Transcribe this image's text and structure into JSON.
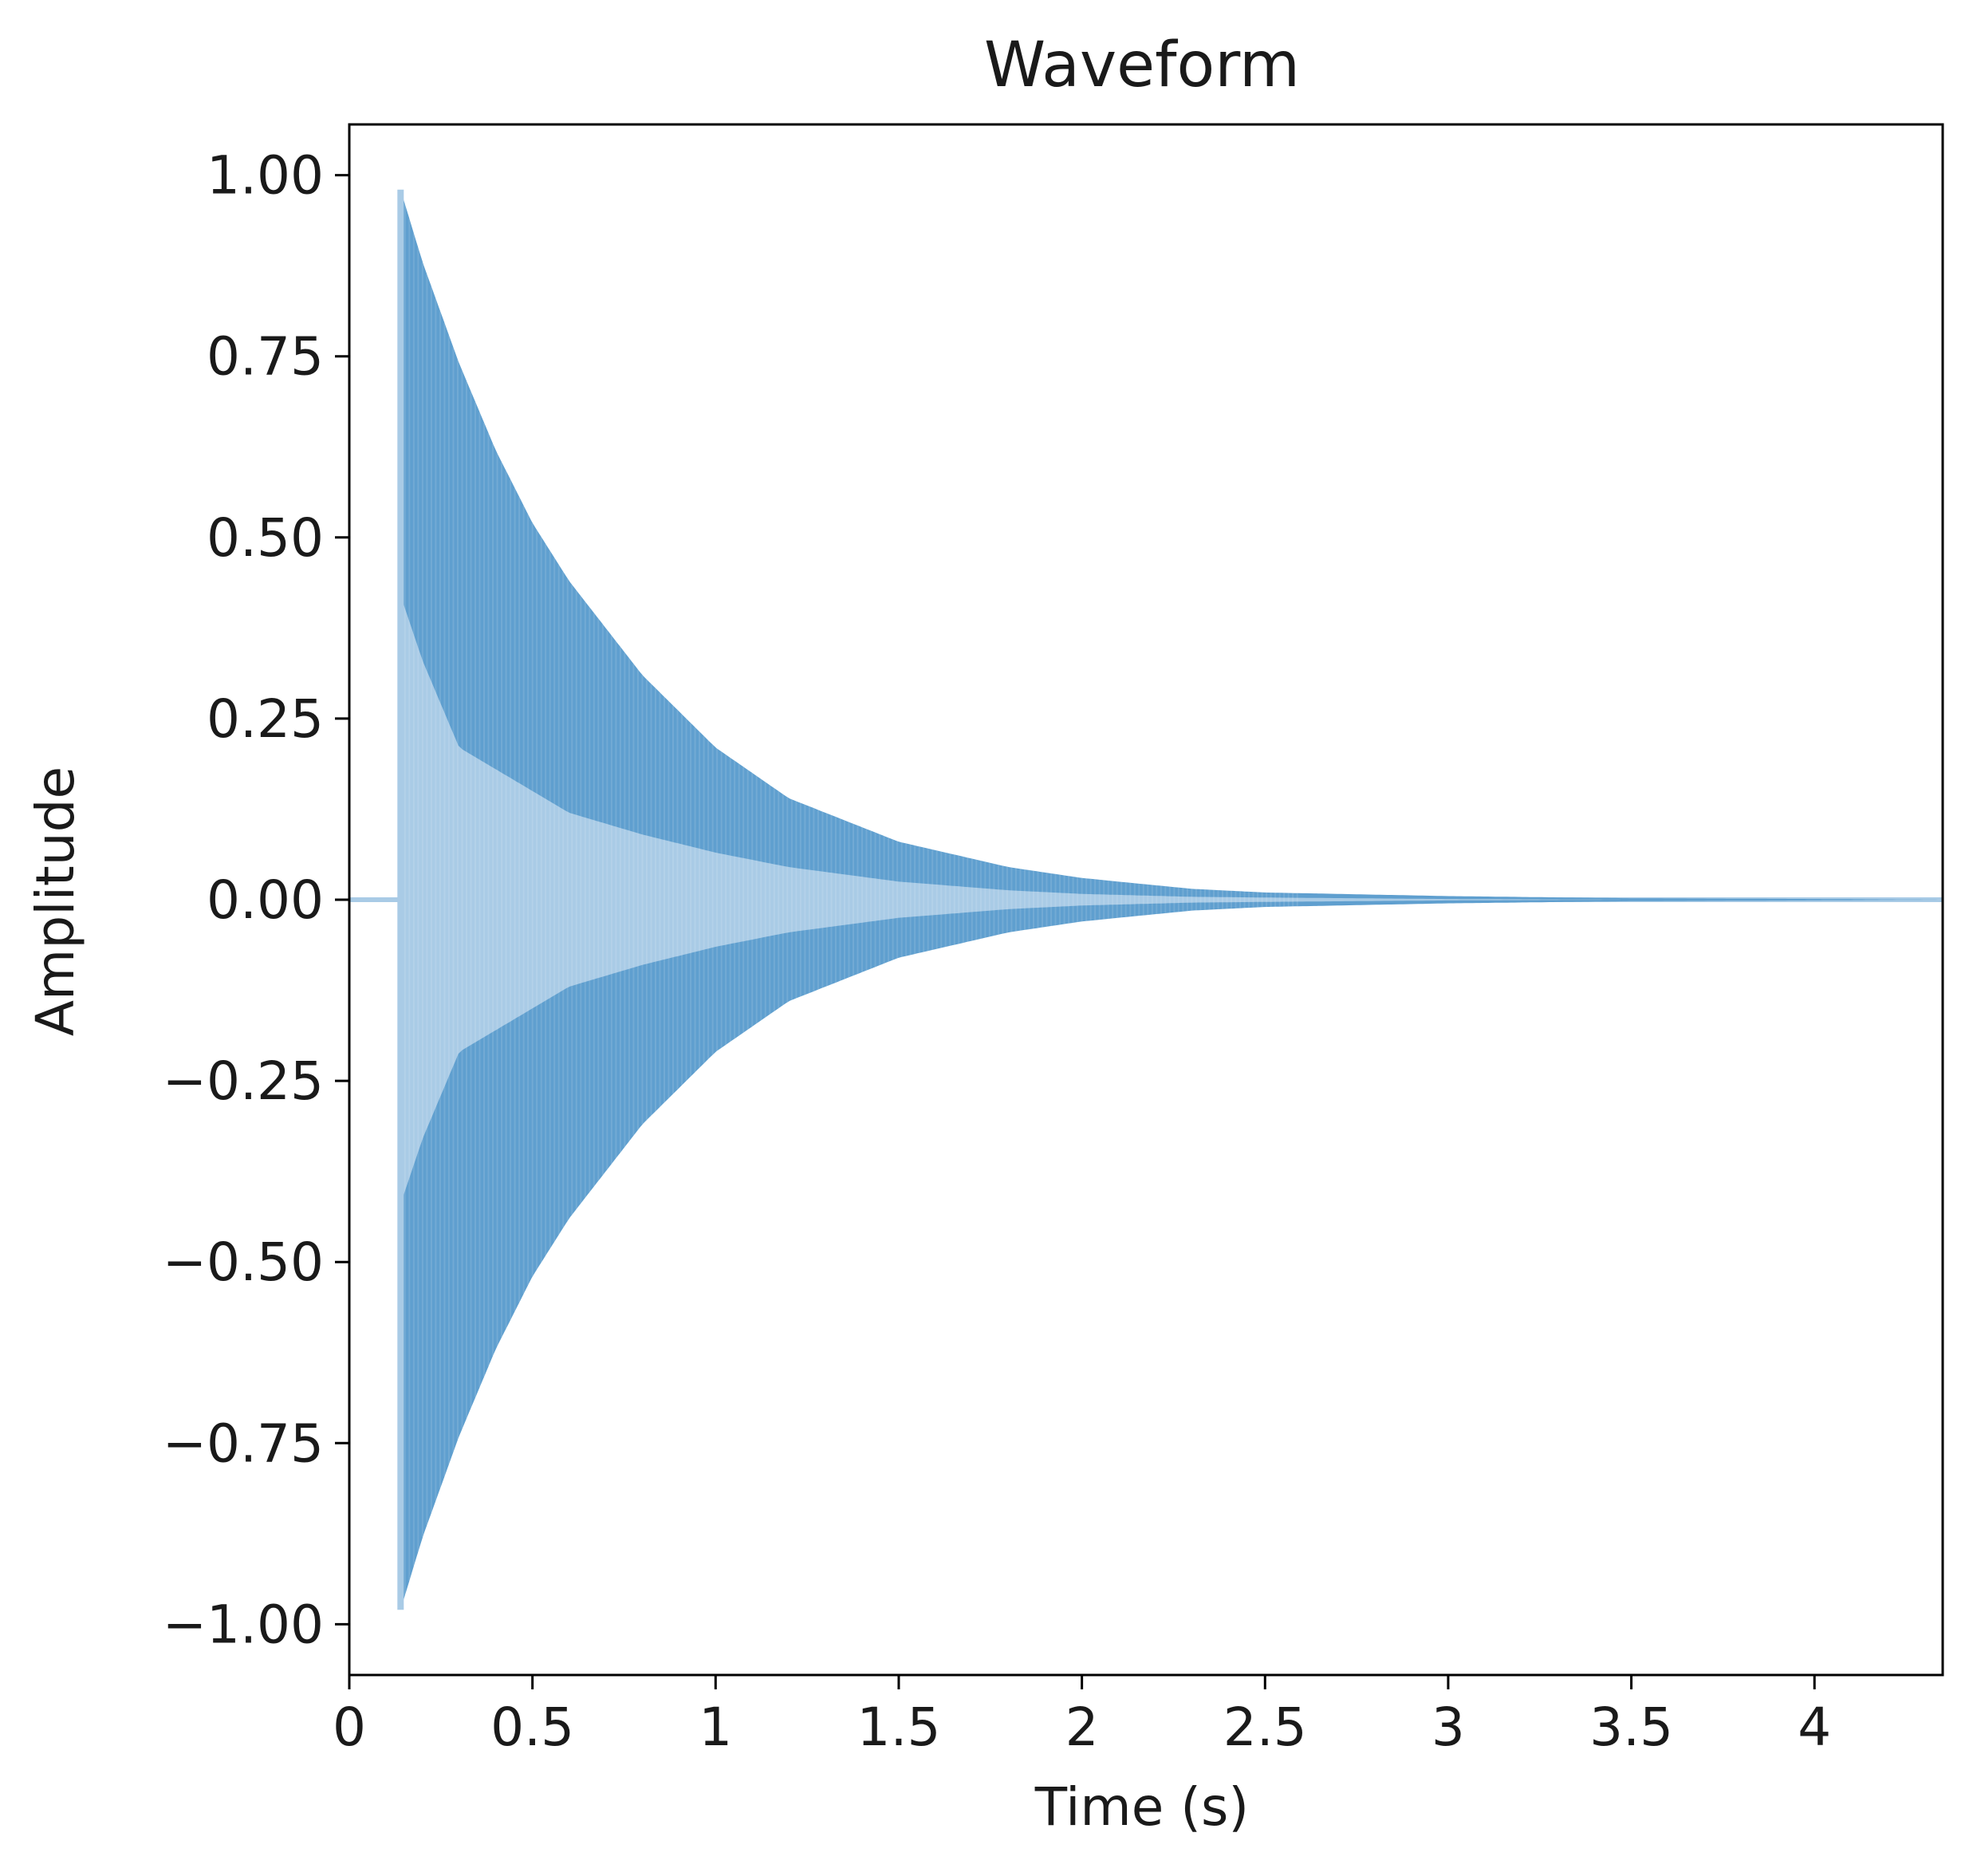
{
  "chart_data": {
    "type": "area",
    "title": "Waveform",
    "xlabel": "Time (s)",
    "ylabel": "Amplitude",
    "xlim": [
      0,
      4.35
    ],
    "ylim": [
      -1.07,
      1.07
    ],
    "xticks": [
      0,
      0.5,
      1,
      1.5,
      2,
      2.5,
      3,
      3.5,
      4
    ],
    "xtick_labels": [
      "0",
      "0.5",
      "1",
      "1.5",
      "2",
      "2.5",
      "3",
      "3.5",
      "4"
    ],
    "yticks": [
      1.0,
      0.75,
      0.5,
      0.25,
      0.0,
      -0.25,
      -0.5,
      -0.75,
      -1.0
    ],
    "ytick_labels": [
      "1.00",
      "0.75",
      "0.50",
      "0.25",
      "0.00",
      "−0.25",
      "−0.50",
      "−0.75",
      "−1.00"
    ],
    "grid": false,
    "legend": "none",
    "series": [
      {
        "onset_time": 0.14,
        "peak_amplitude": 0.98,
        "envelope": {
          "time": [
            0.14,
            0.2,
            0.3,
            0.4,
            0.5,
            0.6,
            0.8,
            1.0,
            1.2,
            1.5,
            1.8,
            2.0,
            2.3,
            2.5,
            3.0,
            3.5,
            4.0,
            4.35
          ],
          "outer": [
            0.98,
            0.88,
            0.74,
            0.62,
            0.52,
            0.44,
            0.31,
            0.21,
            0.14,
            0.08,
            0.045,
            0.03,
            0.015,
            0.01,
            0.005,
            0.002,
            0.001,
            0.0
          ],
          "inner": [
            0.42,
            0.33,
            0.21,
            0.18,
            0.15,
            0.12,
            0.09,
            0.065,
            0.045,
            0.025,
            0.013,
            0.008,
            0.004,
            0.003,
            0.001,
            0.0,
            0.0,
            0.0
          ]
        }
      }
    ],
    "colors": {
      "dark_band": "#5f9fcf",
      "light_core": "#a9cbe6",
      "baseline": "#a9cbe6",
      "axis": "#000000"
    }
  }
}
